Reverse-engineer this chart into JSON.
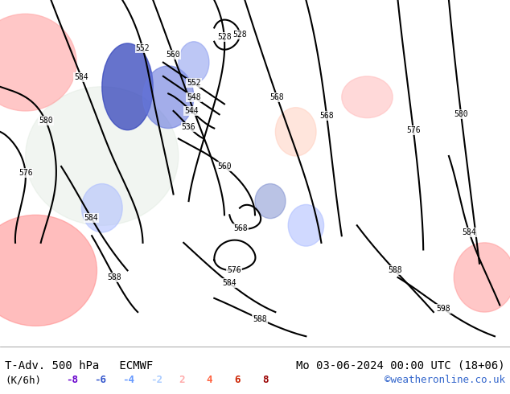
{
  "title_left": "T-Adv. 500 hPa   ECMWF",
  "title_right": "Mo 03-06-2024 00:00 UTC (18+06)",
  "unit_label": "(K/6h)",
  "copyright": "©weatheronline.co.uk",
  "legend_values": [
    -8,
    -6,
    -4,
    -2,
    2,
    4,
    6,
    8
  ],
  "legend_colors": [
    "#6600cc",
    "#3355cc",
    "#6699ff",
    "#aaccff",
    "#ffaaaa",
    "#ff6644",
    "#cc2200",
    "#990000"
  ],
  "map_bg": "#c8ddb8",
  "bottom_bar_color": "#ffffff",
  "font_size_title": 10,
  "font_size_legend": 9,
  "fig_width": 6.34,
  "fig_height": 4.9,
  "dpi": 100
}
